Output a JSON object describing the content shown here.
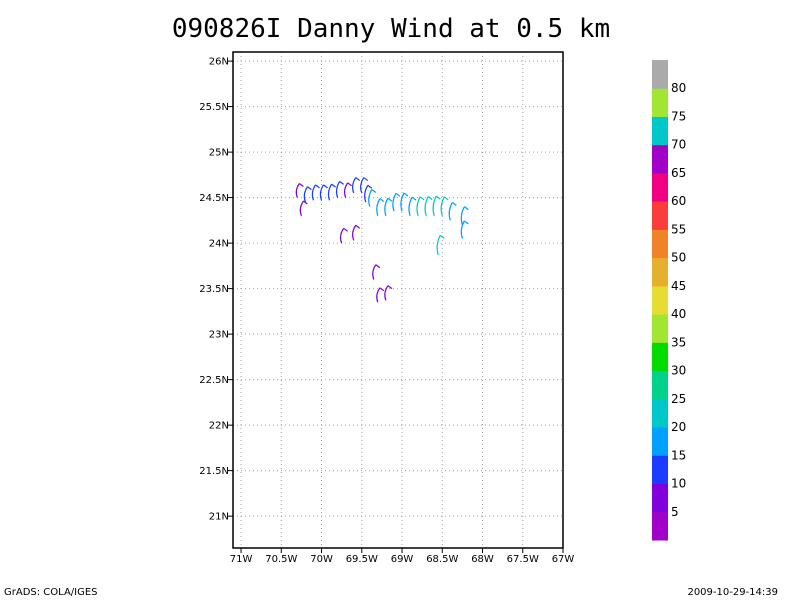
{
  "chart_data": {
    "type": "wind-barb-map",
    "title": "090826I Danny Wind at 0.5 km",
    "x_ticks": [
      "71W",
      "70.5W",
      "70W",
      "69.5W",
      "69W",
      "68.5W",
      "68W",
      "67.5W",
      "67W"
    ],
    "y_ticks": [
      "21N",
      "21.5N",
      "22N",
      "22.5N",
      "23N",
      "23.5N",
      "24N",
      "24.5N",
      "25N",
      "25.5N",
      "26N"
    ],
    "xlim": [
      -71.1,
      -67.0
    ],
    "ylim": [
      20.65,
      26.1
    ],
    "grid": true,
    "colorbar": {
      "labels": [
        "5",
        "10",
        "15",
        "20",
        "25",
        "30",
        "35",
        "40",
        "45",
        "50",
        "55",
        "60",
        "65",
        "70",
        "75",
        "80"
      ],
      "colors": [
        "#a000c8",
        "#8200dc",
        "#1e3cff",
        "#00a0ff",
        "#00c8c8",
        "#00d28c",
        "#00dc00",
        "#a0e632",
        "#e6dc32",
        "#e6af2d",
        "#f08228",
        "#fa3c3c",
        "#f00082",
        "#a000c8",
        "#00c8c8",
        "#a0e632",
        "#aaaaaa"
      ]
    },
    "wind_points": [
      {
        "lon": -70.3,
        "lat": 24.5,
        "speed": 6
      },
      {
        "lon": -70.2,
        "lat": 24.45,
        "speed": 10
      },
      {
        "lon": -70.1,
        "lat": 24.47,
        "speed": 10
      },
      {
        "lon": -70.0,
        "lat": 24.47,
        "speed": 10
      },
      {
        "lon": -69.9,
        "lat": 24.47,
        "speed": 12
      },
      {
        "lon": -69.8,
        "lat": 24.5,
        "speed": 12
      },
      {
        "lon": -69.7,
        "lat": 24.5,
        "speed": 8
      },
      {
        "lon": -69.6,
        "lat": 24.55,
        "speed": 10
      },
      {
        "lon": -69.5,
        "lat": 24.55,
        "speed": 10
      },
      {
        "lon": -69.45,
        "lat": 24.45,
        "speed": 14
      },
      {
        "lon": -69.4,
        "lat": 24.4,
        "speed": 15
      },
      {
        "lon": -69.3,
        "lat": 24.3,
        "speed": 15
      },
      {
        "lon": -69.2,
        "lat": 24.3,
        "speed": 16
      },
      {
        "lon": -69.1,
        "lat": 24.35,
        "speed": 17
      },
      {
        "lon": -69.0,
        "lat": 24.35,
        "speed": 18
      },
      {
        "lon": -68.9,
        "lat": 24.3,
        "speed": 19
      },
      {
        "lon": -68.8,
        "lat": 24.3,
        "speed": 20
      },
      {
        "lon": -68.7,
        "lat": 24.3,
        "speed": 21
      },
      {
        "lon": -68.6,
        "lat": 24.3,
        "speed": 22
      },
      {
        "lon": -68.5,
        "lat": 24.3,
        "speed": 20
      },
      {
        "lon": -68.4,
        "lat": 24.25,
        "speed": 17
      },
      {
        "lon": -68.25,
        "lat": 24.2,
        "speed": 18
      },
      {
        "lon": -68.25,
        "lat": 24.05,
        "speed": 16
      },
      {
        "lon": -70.25,
        "lat": 24.3,
        "speed": 8
      },
      {
        "lon": -69.75,
        "lat": 24.0,
        "speed": 8
      },
      {
        "lon": -69.6,
        "lat": 24.03,
        "speed": 9
      },
      {
        "lon": -68.55,
        "lat": 23.87,
        "speed": 22
      },
      {
        "lon": -69.35,
        "lat": 23.6,
        "speed": 8
      },
      {
        "lon": -69.3,
        "lat": 23.35,
        "speed": 7
      },
      {
        "lon": -69.2,
        "lat": 23.37,
        "speed": 8
      }
    ]
  },
  "footer": {
    "left": "GrADS: COLA/IGES",
    "right": "2009-10-29-14:39"
  }
}
